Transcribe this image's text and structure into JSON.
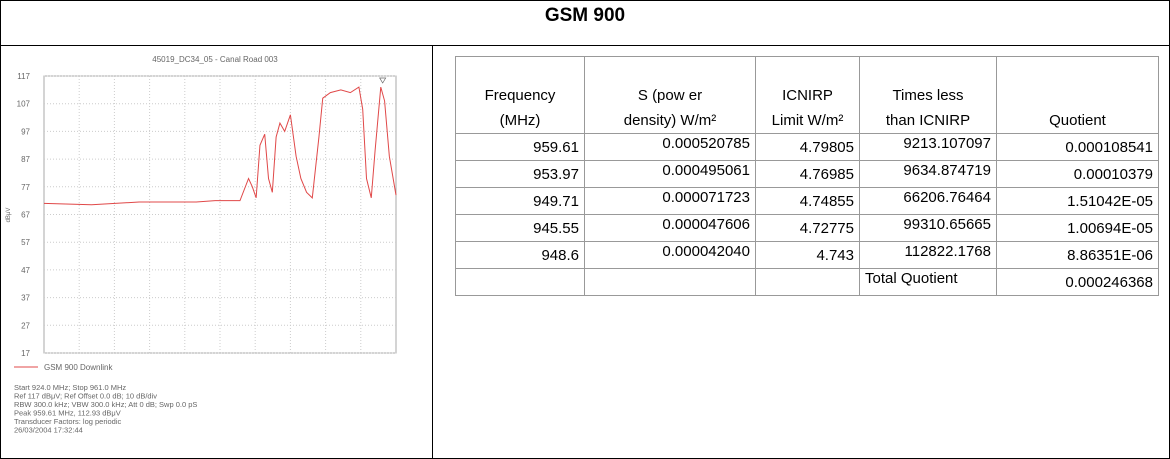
{
  "header": {
    "title": "GSM 900"
  },
  "chart_data": {
    "type": "line",
    "title": "45019_DC34_05 - Canal Road 003",
    "y_label": "dBμV",
    "xlim": [
      924,
      961
    ],
    "ylim": [
      17,
      117
    ],
    "yticks": [
      17,
      27,
      37,
      47,
      57,
      67,
      77,
      87,
      97,
      107,
      117
    ],
    "grid": true,
    "x": [
      924,
      929,
      934,
      940,
      942,
      944.6,
      945.5,
      945.9,
      946.3,
      946.7,
      947.2,
      947.6,
      948,
      948.4,
      948.8,
      949.3,
      949.9,
      950.5,
      951,
      951.6,
      952.2,
      952.9,
      953.3,
      954.1,
      955.2,
      956.2,
      957.1,
      957.5,
      957.9,
      958.4,
      958.8,
      959.4,
      959.8,
      960.3,
      961
    ],
    "series": [
      {
        "name": "GSM 900 Downlink",
        "color": "#e04848",
        "values": [
          71,
          70.5,
          71.5,
          71.5,
          72,
          72,
          80,
          77,
          73,
          92,
          96,
          80,
          75,
          95,
          100,
          97,
          103,
          88,
          80,
          75,
          73,
          95,
          109,
          111,
          112,
          111,
          113,
          105,
          80,
          73,
          90,
          113,
          108,
          88,
          74
        ]
      }
    ],
    "notes": [
      "Start 924.0 MHz; Stop 961.0 MHz",
      "Ref 117 dBμV; Ref Offset 0.0 dB; 10 dB/div",
      "RBW 300.0 kHz; VBW 300.0 kHz; Att 0 dB; Swp 0.0 pS",
      "Peak 959.61 MHz, 112.93 dBμV",
      "Transducer Factors: log periodic",
      "26/03/2004 17:32:44"
    ]
  },
  "table": {
    "headers": [
      [
        "Frequency",
        "(MHz)"
      ],
      [
        "S (pow er",
        "density) W/m²"
      ],
      [
        "ICNIRP",
        "Limit W/m²"
      ],
      [
        "Times less",
        "than ICNIRP"
      ],
      [
        "",
        "Quotient"
      ]
    ],
    "rows": [
      [
        "959.61",
        "0.000520785",
        "4.79805",
        "9213.107097",
        "0.000108541"
      ],
      [
        "953.97",
        "0.000495061",
        "4.76985",
        "9634.874719",
        "0.00010379"
      ],
      [
        "949.71",
        "0.000071723",
        "4.74855",
        "66206.76464",
        "1.51042E-05"
      ],
      [
        "945.55",
        "0.000047606",
        "4.72775",
        "99310.65665",
        "1.00694E-05"
      ],
      [
        "948.6",
        "0.000042040",
        "4.743",
        "112822.1768",
        "8.86351E-06"
      ],
      [
        "",
        "",
        "",
        "Total Quotient",
        "0.000246368"
      ]
    ]
  }
}
